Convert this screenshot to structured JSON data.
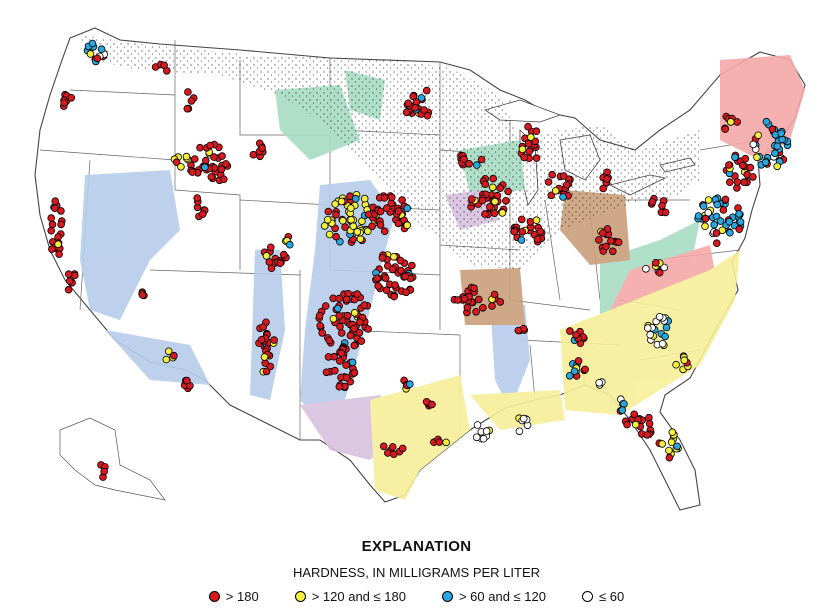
{
  "legend": {
    "title": "EXPLANATION",
    "subtitle": "HARDNESS, IN MILLIGRAMS PER LITER",
    "items": [
      {
        "label": "> 180",
        "color": "#d71920"
      },
      {
        "label": "> 120 and ≤ 180",
        "color": "#f4ee3c"
      },
      {
        "label": "> 60 and ≤ 120",
        "color": "#2aa6df"
      },
      {
        "label": "≤ 60",
        "color": "#ffffff"
      }
    ]
  },
  "aquifer_colors": {
    "basin_fill": "#b6cdea",
    "glacial": "#000000",
    "sandstone": "#a8dcc4",
    "carbonate": "#d9c1e0",
    "sandstone_carbonate": "#c99f7b",
    "crystalline": "#f4a9a7",
    "coastal_plain": "#f7ef9a"
  }
}
